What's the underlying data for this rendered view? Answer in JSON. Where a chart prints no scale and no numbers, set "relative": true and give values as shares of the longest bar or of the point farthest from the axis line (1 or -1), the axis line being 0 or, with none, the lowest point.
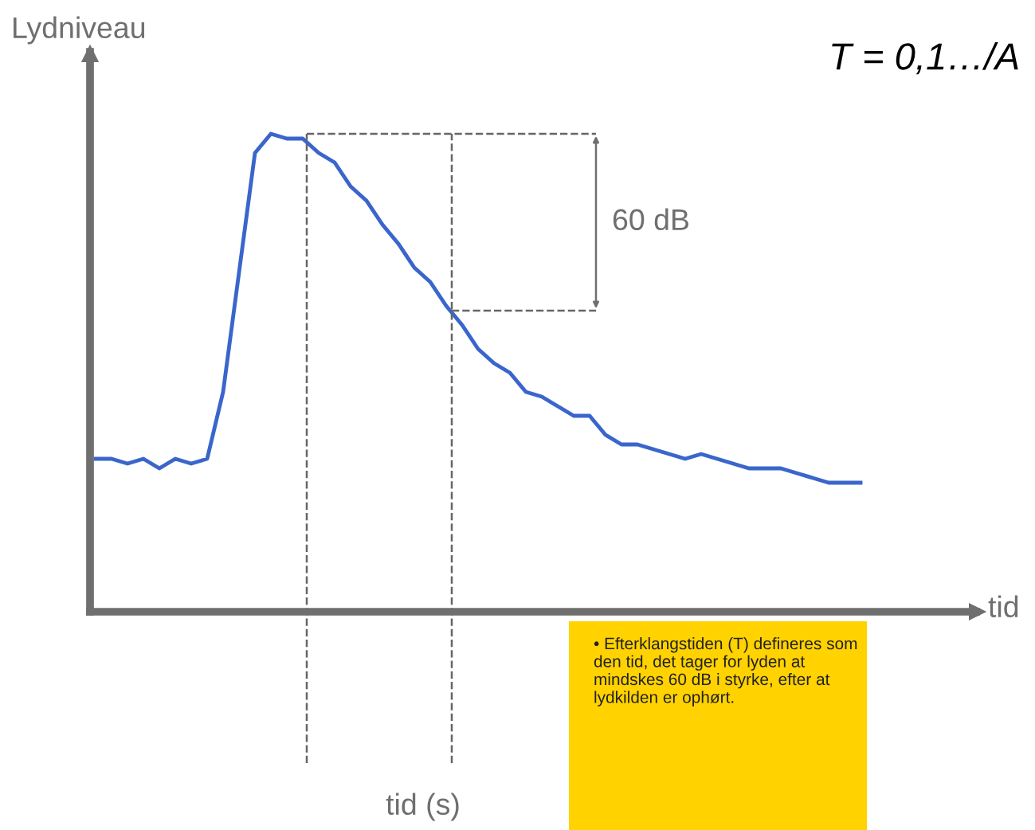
{
  "chart_data": {
    "type": "line",
    "relative": true,
    "xlabel": "tid",
    "ylabel": "Lydniveau",
    "categories": [
      null,
      null,
      null,
      null,
      null,
      null,
      null,
      null,
      null,
      null,
      null,
      null,
      null,
      null,
      null,
      null,
      null,
      null,
      null,
      null,
      null,
      null,
      null,
      null,
      null,
      null,
      null,
      null,
      null,
      null,
      null,
      null,
      null,
      null,
      null,
      null,
      null,
      null,
      null,
      null,
      null,
      null,
      null,
      null,
      null,
      null,
      null,
      null,
      null
    ],
    "series": [
      {
        "color": "#3a66cc",
        "values": [
          0.32,
          0.32,
          0.31,
          0.32,
          0.3,
          0.32,
          0.31,
          0.32,
          0.46,
          0.71,
          0.96,
          1.0,
          0.99,
          0.99,
          0.96,
          0.94,
          0.89,
          0.86,
          0.81,
          0.77,
          0.72,
          0.69,
          0.64,
          0.6,
          0.55,
          0.52,
          0.5,
          0.46,
          0.45,
          0.43,
          0.41,
          0.41,
          0.37,
          0.35,
          0.35,
          0.34,
          0.33,
          0.32,
          0.33,
          0.32,
          0.31,
          0.3,
          0.3,
          0.3,
          0.29,
          0.28,
          0.27,
          0.27,
          0.27
        ]
      }
    ],
    "ref_lines": [
      {
        "axis": "y",
        "value": 1.0,
        "line_style": "dashed",
        "color": "#666666"
      },
      {
        "axis": "y",
        "value": 0.63,
        "line_style": "dashed",
        "color": "#666666"
      }
    ],
    "annotations": [
      "60 dB",
      "tid (s)",
      "• Efterklangstiden (T) defineres som den tid, det tager for lyden at mindskes 60 dB i styrke, efter at lydkilden er ophørt.",
      "T = 0,1…/A"
    ],
    "grid": false,
    "legend": false,
    "marker": "none",
    "line_style": "solid"
  }
}
